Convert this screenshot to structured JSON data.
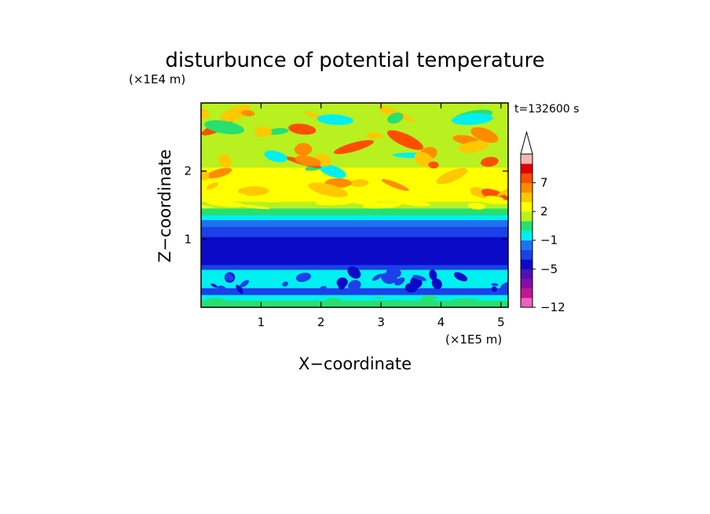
{
  "chart_data": {
    "type": "heatmap",
    "title": "disturbunce of potential temperature",
    "time_label": "t=132600 s",
    "xlabel": "X−coordinate",
    "ylabel": "Z−coordinate",
    "x_scale_label": "(×1E5 m)",
    "y_scale_label": "(×1E4 m)",
    "xlim": [
      0,
      5.12
    ],
    "ylim": [
      0,
      3.0
    ],
    "x_ticks": [
      {
        "value": 1,
        "label": "1"
      },
      {
        "value": 2,
        "label": "2"
      },
      {
        "value": 3,
        "label": "3"
      },
      {
        "value": 4,
        "label": "4"
      },
      {
        "value": 5,
        "label": "5"
      }
    ],
    "y_ticks": [
      {
        "value": 1,
        "label": "1"
      },
      {
        "value": 2,
        "label": "2"
      }
    ],
    "colorbar": {
      "levels": [
        {
          "color": "#f060c0",
          "label": "−12"
        },
        {
          "color": "#c01890"
        },
        {
          "color": "#8a0ca8"
        },
        {
          "color": "#5010b8"
        },
        {
          "color": "#0a0ac8",
          "label": "−5"
        },
        {
          "color": "#1c40e8"
        },
        {
          "color": "#1e72f2"
        },
        {
          "color": "#00f0f0",
          "label": "−1"
        },
        {
          "color": "#28e070"
        },
        {
          "color": "#b8f020"
        },
        {
          "color": "#ffff00",
          "label": "2"
        },
        {
          "color": "#ffc800"
        },
        {
          "color": "#ff8c00"
        },
        {
          "color": "#ff4e00",
          "label": "7"
        },
        {
          "color": "#e00000"
        },
        {
          "color": "#f0b8b0"
        }
      ],
      "extend": "max"
    },
    "grid": false,
    "legend": "colorbar-right"
  }
}
